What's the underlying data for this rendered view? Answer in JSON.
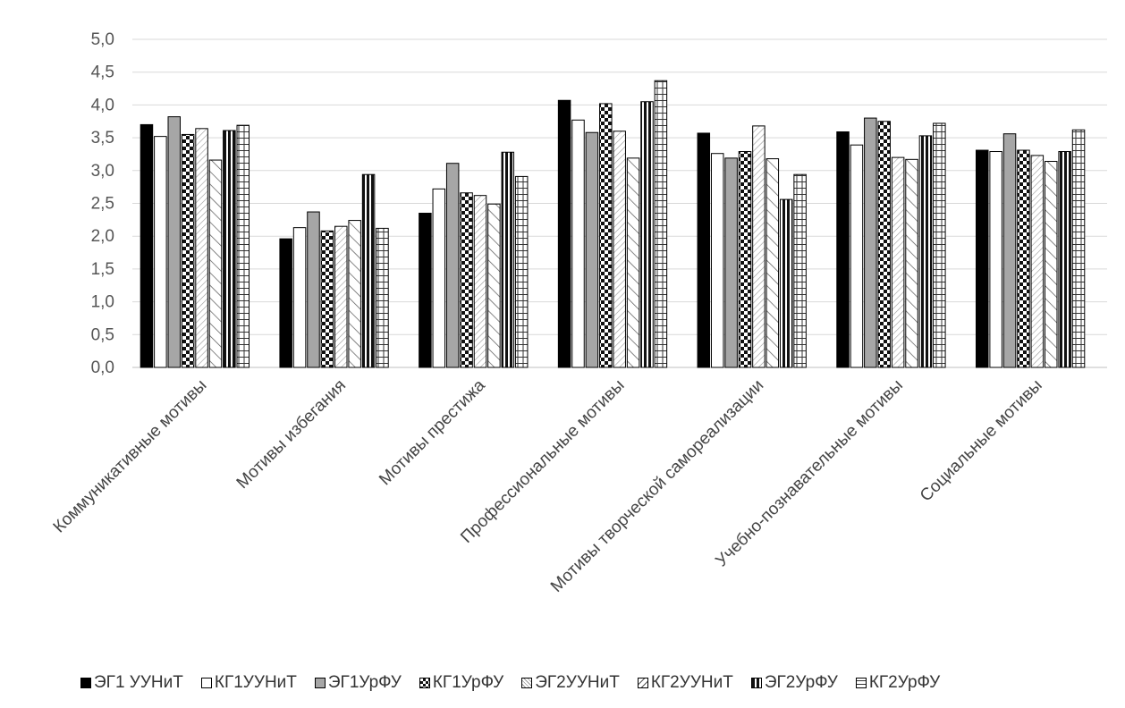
{
  "chart_data": {
    "type": "bar",
    "title": "",
    "xlabel": "",
    "ylabel": "",
    "ylim": [
      0,
      5
    ],
    "yticks": [
      "0,0",
      "0,5",
      "1,0",
      "1,5",
      "2,0",
      "2,5",
      "3,0",
      "3,5",
      "4,0",
      "4,5",
      "5,0"
    ],
    "grid": true,
    "legend_position": "bottom",
    "categories": [
      "Коммуникативные мотивы",
      "Мотивы избегания",
      "Мотивы престижа",
      "Профессиональные мотивы",
      "Мотивы творческой самореализации",
      "Учебно-познавательные мотивы",
      "Социальные мотивы"
    ],
    "series": [
      {
        "name": "ЭГ1 УУНиТ",
        "pattern": "solid-black",
        "values": [
          3.7,
          1.96,
          2.35,
          4.07,
          3.57,
          3.59,
          3.31
        ]
      },
      {
        "name": "КГ1УУНиТ",
        "pattern": "white",
        "values": [
          3.52,
          2.13,
          2.72,
          3.77,
          3.26,
          3.39,
          3.29
        ]
      },
      {
        "name": "ЭГ1УрФУ",
        "pattern": "gray",
        "values": [
          3.82,
          2.37,
          3.11,
          3.58,
          3.19,
          3.8,
          3.56
        ]
      },
      {
        "name": "КГ1УрФУ",
        "pattern": "checker",
        "values": [
          3.55,
          2.08,
          2.66,
          4.02,
          3.29,
          3.75,
          3.31
        ]
      },
      {
        "name": "ЭГ2УУНиТ",
        "pattern": "fine-diagonal",
        "values": [
          3.64,
          2.15,
          2.62,
          3.6,
          3.68,
          3.2,
          3.23
        ]
      },
      {
        "name": "КГ2УУНиТ",
        "pattern": "wide-diagonal",
        "values": [
          3.16,
          2.24,
          2.49,
          3.19,
          3.18,
          3.17,
          3.14
        ]
      },
      {
        "name": "ЭГ2УрФУ",
        "pattern": "vertical-stripes",
        "values": [
          3.61,
          2.94,
          3.28,
          4.05,
          2.56,
          3.53,
          3.29
        ]
      },
      {
        "name": "КГ2УрФУ",
        "pattern": "horizontal-stripes",
        "values": [
          3.69,
          2.12,
          2.91,
          4.37,
          2.94,
          3.72,
          3.62
        ]
      }
    ]
  }
}
